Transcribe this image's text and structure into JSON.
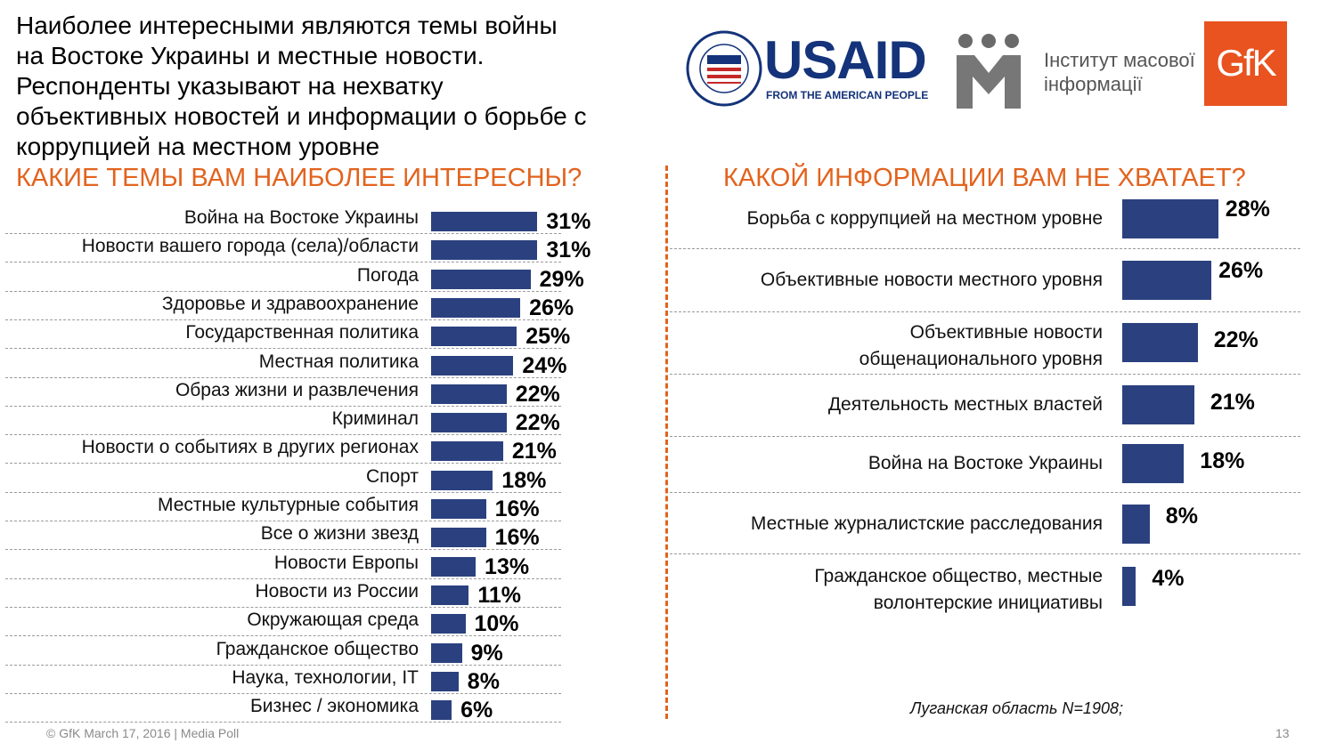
{
  "slide": {
    "headline": "Наиболее интересными являются темы войны\nна Востоке Украины и местные новости.\nРеспонденты указывают на нехватку\nобъективных новостей и информации о борьбе с\nкоррупцией на местном уровне",
    "footer": "© GfK March 17, 2016 | Media Poll",
    "page_number": "13",
    "note": "Луганская область N=1908;",
    "logos": {
      "usaid_word": "USAID",
      "usaid_sub": "FROM THE AMERICAN PEOPLE",
      "usaid_seal_text": "UNITED STATES AGENCY INTERNATIONAL DEVELOPMENT",
      "imi_text": "Інститут масової\nінформації",
      "gfk_word": "GfK"
    },
    "colors": {
      "accent": "#e2631e",
      "bar": "#2b417f"
    }
  },
  "chart_data": [
    {
      "type": "bar",
      "orientation": "horizontal",
      "title": "КАКИЕ ТЕМЫ ВАМ НАИБОЛЕЕ ИНТЕРЕСНЫ?",
      "categories": [
        "Война на Востоке Украины",
        "Новости вашего города (села)/области",
        "Погода",
        "Здоровье и здравоохранение",
        "Государственная политика",
        "Местная политика",
        "Образ жизни и развлечения",
        "Криминал",
        "Новости о событиях в других регионах",
        "Спорт",
        "Местные культурные события",
        "Все о жизни звезд",
        "Новости Европы",
        "Новости из России",
        "Окружающая среда",
        "Гражданское общество",
        "Наука, технологии, IT",
        "Бизнес / экономика"
      ],
      "values": [
        31,
        31,
        29,
        26,
        25,
        24,
        22,
        22,
        21,
        18,
        16,
        16,
        13,
        11,
        10,
        9,
        8,
        6
      ],
      "value_labels": [
        "31%",
        "31%",
        "29%",
        "26%",
        "25%",
        "24%",
        "22%",
        "22%",
        "21%",
        "18%",
        "16%",
        "16%",
        "13%",
        "11%",
        "10%",
        "9%",
        "8%",
        "6%"
      ],
      "unit": "%",
      "grid": false,
      "legend": "none"
    },
    {
      "type": "bar",
      "orientation": "horizontal",
      "title": "КАКОЙ ИНФОРМАЦИИ ВАМ НЕ ХВАТАЕТ?",
      "categories": [
        "Борьба с коррупцией на местном уровне",
        "Объективные новости местного уровня",
        "Объективные новости\nобщенационального уровня",
        "Деятельность местных властей",
        "Война на Востоке Украины",
        "Местные журналистские расследования",
        "Гражданское общество, местные\nволонтерские инициативы"
      ],
      "values": [
        28,
        26,
        22,
        21,
        18,
        8,
        4
      ],
      "value_labels": [
        "28%",
        "26%",
        "22%",
        "21%",
        "18%",
        "8%",
        "4%"
      ],
      "unit": "%",
      "grid": false,
      "legend": "none"
    }
  ]
}
